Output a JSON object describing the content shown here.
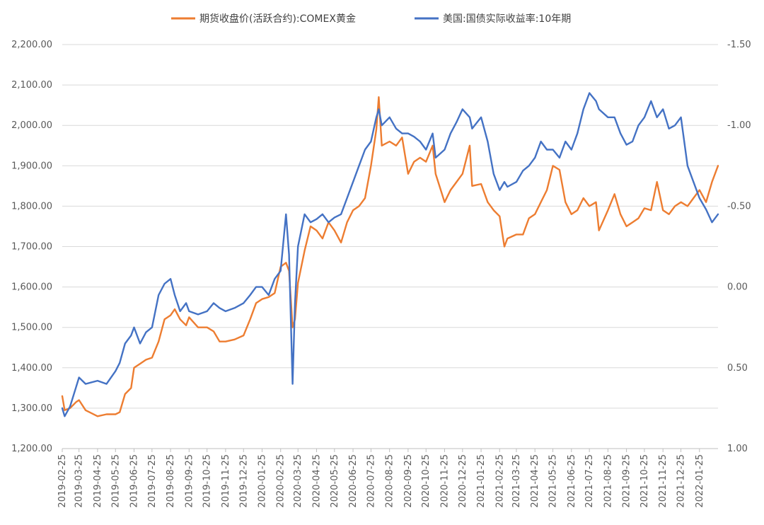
{
  "chart_data": {
    "type": "line",
    "x_dates": [
      "2019-02-25",
      "2019-03-25",
      "2019-04-25",
      "2019-05-25",
      "2019-06-25",
      "2019-07-25",
      "2019-08-25",
      "2019-09-25",
      "2019-10-25",
      "2019-11-25",
      "2019-12-25",
      "2020-01-25",
      "2020-02-25",
      "2020-03-25",
      "2020-04-25",
      "2020-05-25",
      "2020-06-25",
      "2020-07-25",
      "2020-08-25",
      "2020-09-25",
      "2020-10-25",
      "2020-11-25",
      "2020-12-25",
      "2021-01-25",
      "2021-02-25",
      "2021-03-25",
      "2021-04-25",
      "2021-05-25",
      "2021-06-25",
      "2021-07-25",
      "2021-08-25",
      "2021-09-25",
      "2021-10-25",
      "2021-11-25",
      "2021-12-25",
      "2022-01-25"
    ],
    "x_range": [
      "2019-02-25",
      "2022-02-25"
    ],
    "y_left": {
      "min": 1200,
      "max": 2200,
      "ticks": [
        "1,200.00",
        "1,300.00",
        "1,400.00",
        "1,500.00",
        "1,600.00",
        "1,700.00",
        "1,800.00",
        "1,900.00",
        "2,000.00",
        "2,100.00",
        "2,200.00"
      ]
    },
    "y_right": {
      "min": -1.5,
      "max": 1.0,
      "inverted": true,
      "ticks": [
        "-1.50",
        "-1.00",
        "-0.50",
        "0.00",
        "0.50",
        "1.00"
      ]
    },
    "grid": "horizontal",
    "legend_position": "top",
    "series": [
      {
        "name": "期货收盘价(活跃合约):COMEX黄金",
        "color": "#ED7D31",
        "axis": "left",
        "points": [
          [
            "2019-02-25",
            1330
          ],
          [
            "2019-03-01",
            1295
          ],
          [
            "2019-03-10",
            1300
          ],
          [
            "2019-03-20",
            1315
          ],
          [
            "2019-03-25",
            1320
          ],
          [
            "2019-04-05",
            1295
          ],
          [
            "2019-04-25",
            1280
          ],
          [
            "2019-05-10",
            1285
          ],
          [
            "2019-05-25",
            1285
          ],
          [
            "2019-06-01",
            1290
          ],
          [
            "2019-06-10",
            1335
          ],
          [
            "2019-06-20",
            1350
          ],
          [
            "2019-06-25",
            1400
          ],
          [
            "2019-07-05",
            1410
          ],
          [
            "2019-07-15",
            1420
          ],
          [
            "2019-07-25",
            1425
          ],
          [
            "2019-08-05",
            1465
          ],
          [
            "2019-08-15",
            1520
          ],
          [
            "2019-08-25",
            1530
          ],
          [
            "2019-09-01",
            1545
          ],
          [
            "2019-09-10",
            1520
          ],
          [
            "2019-09-20",
            1505
          ],
          [
            "2019-09-25",
            1525
          ],
          [
            "2019-10-10",
            1500
          ],
          [
            "2019-10-25",
            1500
          ],
          [
            "2019-11-05",
            1490
          ],
          [
            "2019-11-15",
            1465
          ],
          [
            "2019-11-25",
            1465
          ],
          [
            "2019-12-10",
            1470
          ],
          [
            "2019-12-25",
            1480
          ],
          [
            "2020-01-05",
            1520
          ],
          [
            "2020-01-15",
            1560
          ],
          [
            "2020-01-25",
            1570
          ],
          [
            "2020-02-05",
            1575
          ],
          [
            "2020-02-15",
            1585
          ],
          [
            "2020-02-25",
            1650
          ],
          [
            "2020-03-05",
            1660
          ],
          [
            "2020-03-10",
            1640
          ],
          [
            "2020-03-16",
            1500
          ],
          [
            "2020-03-20",
            1520
          ],
          [
            "2020-03-25",
            1610
          ],
          [
            "2020-04-05",
            1690
          ],
          [
            "2020-04-15",
            1750
          ],
          [
            "2020-04-25",
            1740
          ],
          [
            "2020-05-05",
            1720
          ],
          [
            "2020-05-15",
            1760
          ],
          [
            "2020-05-25",
            1740
          ],
          [
            "2020-06-05",
            1710
          ],
          [
            "2020-06-15",
            1760
          ],
          [
            "2020-06-25",
            1790
          ],
          [
            "2020-07-05",
            1800
          ],
          [
            "2020-07-15",
            1820
          ],
          [
            "2020-07-25",
            1900
          ],
          [
            "2020-08-03",
            1990
          ],
          [
            "2020-08-07",
            2070
          ],
          [
            "2020-08-12",
            1950
          ],
          [
            "2020-08-25",
            1960
          ],
          [
            "2020-09-05",
            1950
          ],
          [
            "2020-09-15",
            1970
          ],
          [
            "2020-09-25",
            1880
          ],
          [
            "2020-10-05",
            1910
          ],
          [
            "2020-10-15",
            1920
          ],
          [
            "2020-10-25",
            1910
          ],
          [
            "2020-11-05",
            1950
          ],
          [
            "2020-11-10",
            1880
          ],
          [
            "2020-11-25",
            1810
          ],
          [
            "2020-12-05",
            1840
          ],
          [
            "2020-12-15",
            1860
          ],
          [
            "2020-12-25",
            1880
          ],
          [
            "2021-01-06",
            1950
          ],
          [
            "2021-01-10",
            1850
          ],
          [
            "2021-01-25",
            1855
          ],
          [
            "2021-02-05",
            1810
          ],
          [
            "2021-02-15",
            1790
          ],
          [
            "2021-02-25",
            1775
          ],
          [
            "2021-03-05",
            1700
          ],
          [
            "2021-03-10",
            1720
          ],
          [
            "2021-03-25",
            1730
          ],
          [
            "2021-04-05",
            1730
          ],
          [
            "2021-04-15",
            1770
          ],
          [
            "2021-04-25",
            1780
          ],
          [
            "2021-05-05",
            1810
          ],
          [
            "2021-05-15",
            1840
          ],
          [
            "2021-05-25",
            1900
          ],
          [
            "2021-06-05",
            1890
          ],
          [
            "2021-06-15",
            1810
          ],
          [
            "2021-06-25",
            1780
          ],
          [
            "2021-07-05",
            1790
          ],
          [
            "2021-07-15",
            1820
          ],
          [
            "2021-07-25",
            1800
          ],
          [
            "2021-08-05",
            1810
          ],
          [
            "2021-08-10",
            1740
          ],
          [
            "2021-08-25",
            1790
          ],
          [
            "2021-09-05",
            1830
          ],
          [
            "2021-09-15",
            1780
          ],
          [
            "2021-09-25",
            1750
          ],
          [
            "2021-10-05",
            1760
          ],
          [
            "2021-10-15",
            1770
          ],
          [
            "2021-10-25",
            1795
          ],
          [
            "2021-11-05",
            1790
          ],
          [
            "2021-11-15",
            1860
          ],
          [
            "2021-11-25",
            1790
          ],
          [
            "2021-12-05",
            1780
          ],
          [
            "2021-12-15",
            1800
          ],
          [
            "2021-12-25",
            1810
          ],
          [
            "2022-01-05",
            1800
          ],
          [
            "2022-01-15",
            1820
          ],
          [
            "2022-01-25",
            1840
          ],
          [
            "2022-02-05",
            1810
          ],
          [
            "2022-02-15",
            1860
          ],
          [
            "2022-02-25",
            1900
          ]
        ]
      },
      {
        "name": "美国:国债实际收益率:10年期",
        "color": "#4472C4",
        "axis": "right",
        "points": [
          [
            "2019-02-25",
            0.75
          ],
          [
            "2019-03-01",
            0.8
          ],
          [
            "2019-03-10",
            0.74
          ],
          [
            "2019-03-20",
            0.62
          ],
          [
            "2019-03-25",
            0.56
          ],
          [
            "2019-04-05",
            0.6
          ],
          [
            "2019-04-25",
            0.58
          ],
          [
            "2019-05-10",
            0.6
          ],
          [
            "2019-05-25",
            0.52
          ],
          [
            "2019-06-01",
            0.47
          ],
          [
            "2019-06-10",
            0.35
          ],
          [
            "2019-06-20",
            0.3
          ],
          [
            "2019-06-25",
            0.25
          ],
          [
            "2019-07-05",
            0.35
          ],
          [
            "2019-07-15",
            0.28
          ],
          [
            "2019-07-25",
            0.25
          ],
          [
            "2019-08-05",
            0.05
          ],
          [
            "2019-08-15",
            -0.02
          ],
          [
            "2019-08-25",
            -0.05
          ],
          [
            "2019-09-01",
            0.05
          ],
          [
            "2019-09-10",
            0.15
          ],
          [
            "2019-09-20",
            0.1
          ],
          [
            "2019-09-25",
            0.15
          ],
          [
            "2019-10-10",
            0.17
          ],
          [
            "2019-10-25",
            0.15
          ],
          [
            "2019-11-05",
            0.1
          ],
          [
            "2019-11-15",
            0.13
          ],
          [
            "2019-11-25",
            0.15
          ],
          [
            "2019-12-10",
            0.13
          ],
          [
            "2019-12-25",
            0.1
          ],
          [
            "2020-01-05",
            0.05
          ],
          [
            "2020-01-15",
            0.0
          ],
          [
            "2020-01-25",
            0.0
          ],
          [
            "2020-02-05",
            0.05
          ],
          [
            "2020-02-15",
            -0.05
          ],
          [
            "2020-02-25",
            -0.1
          ],
          [
            "2020-03-05",
            -0.45
          ],
          [
            "2020-03-10",
            -0.2
          ],
          [
            "2020-03-16",
            0.6
          ],
          [
            "2020-03-20",
            0.1
          ],
          [
            "2020-03-25",
            -0.25
          ],
          [
            "2020-04-05",
            -0.45
          ],
          [
            "2020-04-15",
            -0.4
          ],
          [
            "2020-04-25",
            -0.42
          ],
          [
            "2020-05-05",
            -0.45
          ],
          [
            "2020-05-15",
            -0.4
          ],
          [
            "2020-05-25",
            -0.43
          ],
          [
            "2020-06-05",
            -0.45
          ],
          [
            "2020-06-15",
            -0.55
          ],
          [
            "2020-06-25",
            -0.65
          ],
          [
            "2020-07-05",
            -0.75
          ],
          [
            "2020-07-15",
            -0.85
          ],
          [
            "2020-07-25",
            -0.9
          ],
          [
            "2020-08-03",
            -1.05
          ],
          [
            "2020-08-07",
            -1.1
          ],
          [
            "2020-08-12",
            -1.0
          ],
          [
            "2020-08-25",
            -1.05
          ],
          [
            "2020-09-05",
            -0.98
          ],
          [
            "2020-09-15",
            -0.95
          ],
          [
            "2020-09-25",
            -0.95
          ],
          [
            "2020-10-05",
            -0.93
          ],
          [
            "2020-10-15",
            -0.9
          ],
          [
            "2020-10-25",
            -0.85
          ],
          [
            "2020-11-05",
            -0.95
          ],
          [
            "2020-11-10",
            -0.8
          ],
          [
            "2020-11-25",
            -0.85
          ],
          [
            "2020-12-05",
            -0.95
          ],
          [
            "2020-12-15",
            -1.02
          ],
          [
            "2020-12-25",
            -1.1
          ],
          [
            "2021-01-06",
            -1.05
          ],
          [
            "2021-01-10",
            -0.98
          ],
          [
            "2021-01-25",
            -1.05
          ],
          [
            "2021-02-05",
            -0.9
          ],
          [
            "2021-02-15",
            -0.7
          ],
          [
            "2021-02-25",
            -0.6
          ],
          [
            "2021-03-05",
            -0.65
          ],
          [
            "2021-03-10",
            -0.62
          ],
          [
            "2021-03-25",
            -0.65
          ],
          [
            "2021-04-05",
            -0.72
          ],
          [
            "2021-04-15",
            -0.75
          ],
          [
            "2021-04-25",
            -0.8
          ],
          [
            "2021-05-05",
            -0.9
          ],
          [
            "2021-05-15",
            -0.85
          ],
          [
            "2021-05-25",
            -0.85
          ],
          [
            "2021-06-05",
            -0.8
          ],
          [
            "2021-06-15",
            -0.9
          ],
          [
            "2021-06-25",
            -0.85
          ],
          [
            "2021-07-05",
            -0.95
          ],
          [
            "2021-07-15",
            -1.1
          ],
          [
            "2021-07-25",
            -1.2
          ],
          [
            "2021-08-05",
            -1.15
          ],
          [
            "2021-08-10",
            -1.1
          ],
          [
            "2021-08-25",
            -1.05
          ],
          [
            "2021-09-05",
            -1.05
          ],
          [
            "2021-09-15",
            -0.95
          ],
          [
            "2021-09-25",
            -0.88
          ],
          [
            "2021-10-05",
            -0.9
          ],
          [
            "2021-10-15",
            -1.0
          ],
          [
            "2021-10-25",
            -1.05
          ],
          [
            "2021-11-05",
            -1.15
          ],
          [
            "2021-11-15",
            -1.05
          ],
          [
            "2021-11-25",
            -1.1
          ],
          [
            "2021-12-05",
            -0.98
          ],
          [
            "2021-12-15",
            -1.0
          ],
          [
            "2021-12-25",
            -1.05
          ],
          [
            "2022-01-05",
            -0.75
          ],
          [
            "2022-01-15",
            -0.65
          ],
          [
            "2022-01-25",
            -0.55
          ],
          [
            "2022-02-05",
            -0.48
          ],
          [
            "2022-02-15",
            -0.4
          ],
          [
            "2022-02-25",
            -0.45
          ]
        ]
      }
    ]
  }
}
